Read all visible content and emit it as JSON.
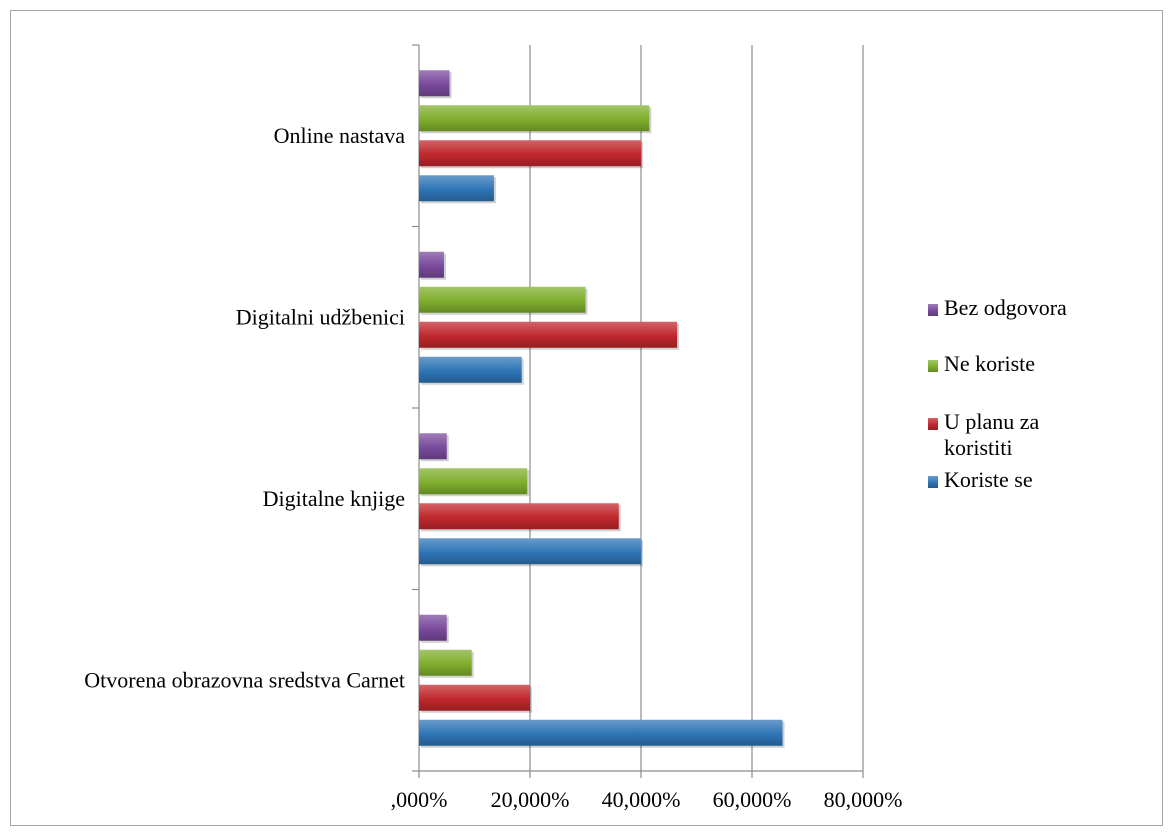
{
  "chart_data": {
    "type": "bar",
    "orientation": "horizontal",
    "title": "",
    "xlabel": "",
    "ylabel": "",
    "categories": [
      "Otvorena obrazovna sredstva Carnet",
      "Digitalne knjige",
      "Digitalni udžbenici",
      "Online nastava"
    ],
    "series": [
      {
        "name": "Koriste se",
        "color": "#2e75b6",
        "values": [
          65.5,
          40.0,
          18.5,
          13.5
        ]
      },
      {
        "name": "U planu za koristiti",
        "legend_lines": [
          "U planu za",
          "koristiti"
        ],
        "color": "#c0282d",
        "values": [
          20.0,
          36.0,
          46.5,
          40.0
        ]
      },
      {
        "name": "Ne koriste",
        "color": "#7fae2d",
        "values": [
          9.5,
          19.5,
          30.0,
          41.5
        ]
      },
      {
        "name": "Bez odgovora",
        "color": "#7a4a9c",
        "values": [
          5.0,
          5.0,
          4.5,
          5.5
        ]
      }
    ],
    "xlim": [
      0,
      80
    ],
    "x_ticks": [
      0,
      20,
      40,
      60,
      80
    ],
    "x_tick_labels": [
      ",000%",
      "20,000%",
      "40,000%",
      "60,000%",
      "80,000%"
    ],
    "grid": "vertical major gridlines",
    "legend_position": "right",
    "legend_order": [
      "Bez odgovora",
      "Ne koriste",
      "U planu za koristiti",
      "Koriste se"
    ]
  }
}
